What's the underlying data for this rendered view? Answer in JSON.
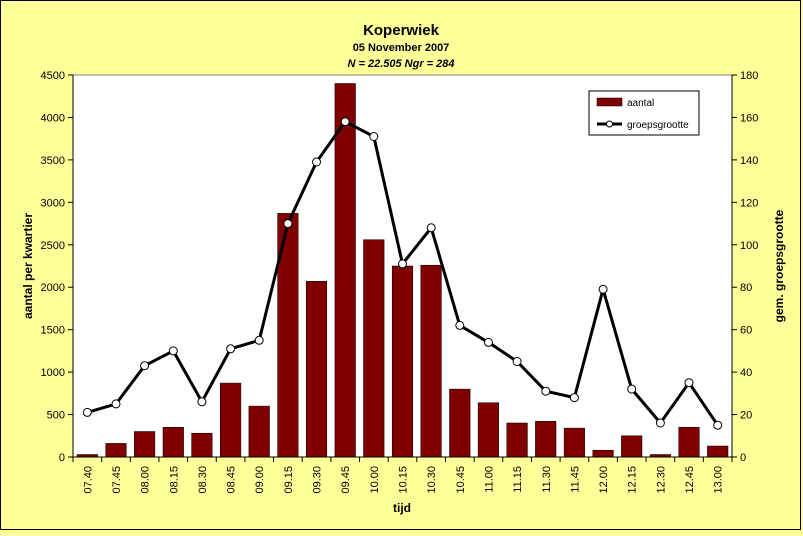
{
  "chart_data": {
    "type": "bar",
    "title": "Koperwiek",
    "subtitle": "05 November 2007",
    "subtitle2": "N = 22.505 Ngr = 284",
    "xlabel": "tijd",
    "ylabel": "aantal per kwartier",
    "y2label": "gem. groepsgrootte",
    "ylim": [
      0,
      4500
    ],
    "y2lim": [
      0,
      180
    ],
    "yticks": [
      0,
      500,
      1000,
      1500,
      2000,
      2500,
      3000,
      3500,
      4000,
      4500
    ],
    "y2ticks": [
      0,
      20,
      40,
      60,
      80,
      100,
      120,
      140,
      160,
      180
    ],
    "legend_position": "top-right",
    "grid": false,
    "categories": [
      "07.40",
      "07.45",
      "08.00",
      "08.15",
      "08.30",
      "08.45",
      "09.00",
      "09.15",
      "09.30",
      "09.45",
      "10.00",
      "10.15",
      "10.30",
      "10.45",
      "11.00",
      "11.15",
      "11.30",
      "11.45",
      "12.00",
      "12.15",
      "12.30",
      "12.45",
      "13.00"
    ],
    "series": [
      {
        "name": "aantal",
        "type": "bar",
        "axis": "left",
        "color": "#800000",
        "values": [
          30,
          160,
          300,
          350,
          280,
          870,
          600,
          2870,
          2070,
          4400,
          2560,
          2250,
          2260,
          800,
          640,
          400,
          420,
          340,
          80,
          250,
          30,
          350,
          130
        ]
      },
      {
        "name": "groepsgrootte",
        "type": "line",
        "axis": "right",
        "color": "#000000",
        "values": [
          21,
          25,
          43,
          50,
          26,
          51,
          55,
          110,
          139,
          158,
          151,
          91,
          108,
          62,
          54,
          45,
          31,
          28,
          79,
          32,
          16,
          35,
          15
        ]
      }
    ]
  }
}
